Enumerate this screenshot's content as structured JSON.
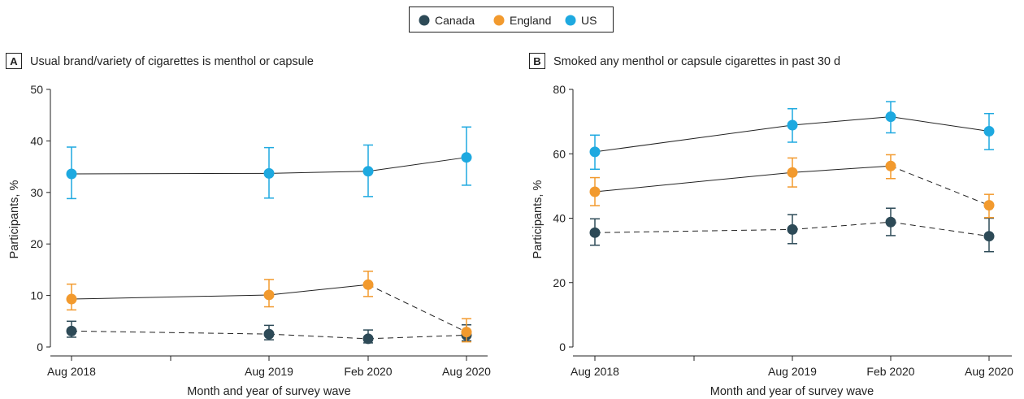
{
  "legend": {
    "items": [
      {
        "name": "Canada",
        "color": "#2d4a57"
      },
      {
        "name": "England",
        "color": "#f29a2e"
      },
      {
        "name": "US",
        "color": "#1ea9e0"
      }
    ]
  },
  "chart_data": [
    {
      "type": "line",
      "panel_label": "A",
      "title": "Usual brand/variety of cigarettes is menthol or capsule",
      "xlabel": "Month and year of survey wave",
      "ylabel": "Participants, %",
      "ylim": [
        0,
        50
      ],
      "yticks": [
        "0",
        "10",
        "20",
        "30",
        "40",
        "50"
      ],
      "x_ticks": [
        "Aug 2018",
        "Aug 2019",
        "Feb 2020",
        "Aug 2020"
      ],
      "series": [
        {
          "name": "Canada",
          "dash": "dashed",
          "values": [
            3.1,
            2.5,
            1.6,
            2.3
          ],
          "ci_low": [
            1.9,
            1.4,
            0.8,
            1.2
          ],
          "ci_high": [
            5.0,
            4.2,
            3.3,
            4.3
          ]
        },
        {
          "name": "England",
          "dash": "solid-then-dashed",
          "values": [
            9.3,
            10.1,
            12.1,
            2.9
          ],
          "ci_low": [
            7.2,
            7.8,
            9.8,
            1.0
          ],
          "ci_high": [
            12.2,
            13.1,
            14.7,
            5.5
          ]
        },
        {
          "name": "US",
          "dash": "solid",
          "values": [
            33.6,
            33.7,
            34.1,
            36.8
          ],
          "ci_low": [
            28.8,
            28.9,
            29.2,
            31.4
          ],
          "ci_high": [
            38.8,
            38.7,
            39.2,
            42.7
          ]
        }
      ]
    },
    {
      "type": "line",
      "panel_label": "B",
      "title": "Smoked any menthol or capsule cigarettes in past 30 d",
      "xlabel": "Month and year of survey wave",
      "ylabel": "Participants, %",
      "ylim": [
        0,
        80
      ],
      "yticks": [
        "0",
        "20",
        "40",
        "60",
        "80"
      ],
      "x_ticks": [
        "Aug 2018",
        "Aug 2019",
        "Feb 2020",
        "Aug 2020"
      ],
      "series": [
        {
          "name": "Canada",
          "dash": "dashed",
          "values": [
            35.5,
            36.5,
            38.8,
            34.4
          ],
          "ci_low": [
            31.6,
            32.1,
            34.6,
            29.6
          ],
          "ci_high": [
            39.8,
            41.1,
            43.1,
            40.0
          ]
        },
        {
          "name": "England",
          "dash": "solid-then-dashed",
          "values": [
            48.2,
            54.2,
            56.2,
            44.0
          ],
          "ci_low": [
            43.9,
            49.7,
            52.3,
            40.2
          ],
          "ci_high": [
            52.6,
            58.7,
            59.7,
            47.4
          ]
        },
        {
          "name": "US",
          "dash": "solid",
          "values": [
            60.6,
            68.9,
            71.5,
            67.0
          ],
          "ci_low": [
            55.2,
            63.6,
            66.5,
            61.3
          ],
          "ci_high": [
            65.8,
            74.0,
            76.2,
            72.5
          ]
        }
      ]
    }
  ]
}
